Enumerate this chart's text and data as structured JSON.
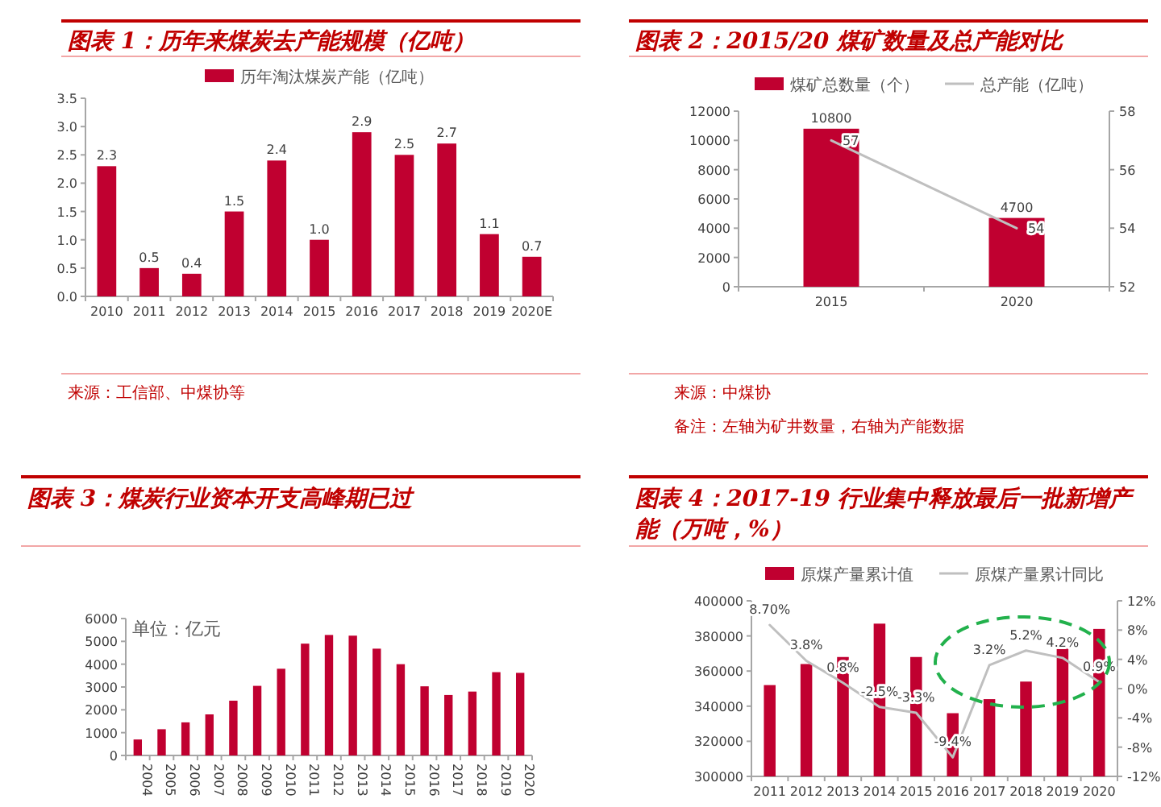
{
  "chart_data": [
    {
      "type": "bar",
      "title": "图表 1：历年来煤炭去产能规模（亿吨）",
      "categories": [
        "2010",
        "2011",
        "2012",
        "2013",
        "2014",
        "2015",
        "2016",
        "2017",
        "2018",
        "2019",
        "2020E"
      ],
      "series": [
        {
          "name": "历年淘汰煤炭产能（亿吨）",
          "color": "#c00030",
          "values": [
            2.3,
            0.5,
            0.4,
            1.5,
            2.4,
            1.0,
            2.9,
            2.5,
            2.7,
            1.1,
            0.7
          ],
          "value_labels": [
            "2.3",
            "0.5",
            "0.4",
            "1.5",
            "2.4",
            "1.0",
            "2.9",
            "2.5",
            "2.7",
            "1.1",
            "0.7"
          ]
        }
      ],
      "ylim": [
        0,
        3.5
      ],
      "yticks": [
        {
          "value": 0,
          "label": "0.0"
        },
        {
          "value": 0.5,
          "label": "0.5"
        },
        {
          "value": 1,
          "label": "1.0"
        },
        {
          "value": 1.5,
          "label": "1.5"
        },
        {
          "value": 2,
          "label": "2.0"
        },
        {
          "value": 2.5,
          "label": "2.5"
        },
        {
          "value": 3,
          "label": "3.0"
        },
        {
          "value": 3.5,
          "label": "3.5"
        }
      ],
      "legend": "top",
      "grid": false,
      "annotations": [
        "来源：工信部、中煤协等"
      ]
    },
    {
      "type": "bar",
      "title": "图表 2：2015/20 煤矿数量及总产能对比",
      "categories": [
        "2015",
        "2020"
      ],
      "series": [
        {
          "name": "煤矿总数量（个）",
          "color": "#c00030",
          "values": [
            10800,
            4700
          ]
        },
        {
          "name": "总产能（亿吨）",
          "type": "line",
          "axis": "y2",
          "color": "#bfbfbf",
          "values": [
            57,
            54
          ]
        }
      ],
      "ylim": [
        0,
        12000
      ],
      "yticks": [
        0,
        2000,
        4000,
        6000,
        8000,
        10000,
        12000
      ],
      "y2lim": [
        52,
        58
      ],
      "y2ticks": [
        52,
        54,
        56,
        58
      ],
      "data_labels": true,
      "legend": "top",
      "grid": false,
      "annotations": [
        "来源：中煤协",
        "备注：左轴为矿井数量，右轴为产能数据"
      ]
    },
    {
      "type": "bar",
      "title": "图表 3：煤炭行业资本开支高峰期已过",
      "categories": [
        "2004",
        "2005",
        "2006",
        "2007",
        "2008",
        "2009",
        "2010",
        "2011",
        "2012",
        "2013",
        "2014",
        "2015",
        "2016",
        "2017",
        "2018",
        "2019",
        "2020"
      ],
      "series": [
        {
          "color": "#c00030",
          "values": [
            700,
            1150,
            1450,
            1800,
            2400,
            3050,
            3800,
            4900,
            5280,
            5250,
            4680,
            4000,
            3030,
            2650,
            2800,
            3650,
            3620
          ]
        }
      ],
      "ylim": [
        0,
        6000
      ],
      "yticks": [
        0,
        1000,
        2000,
        3000,
        4000,
        5000,
        6000
      ],
      "grid": false,
      "annotations": [
        "单位：亿元"
      ]
    },
    {
      "type": "bar",
      "title": "图表 4：2017-19 行业集中释放最后一批新增产能（万吨，%）",
      "categories": [
        "2011",
        "2012",
        "2013",
        "2014",
        "2015",
        "2016",
        "2017",
        "2018",
        "2019",
        "2020"
      ],
      "series": [
        {
          "name": "原煤产量累计值",
          "color": "#c00030",
          "values": [
            352000,
            364000,
            368000,
            387000,
            368000,
            336000,
            344000,
            354000,
            374000,
            384000
          ]
        },
        {
          "name": "原煤产量累计同比",
          "type": "line",
          "axis": "y2",
          "color": "#bfbfbf",
          "values": [
            8.7,
            3.8,
            0.8,
            -2.5,
            -3.3,
            -9.4,
            3.2,
            5.2,
            4.2,
            0.9
          ],
          "value_labels": [
            "8.70%",
            "3.8%",
            "0.8%",
            "-2.5%",
            "-3.3%",
            "-9.4%",
            "3.2%",
            "5.2%",
            "4.2%",
            "0.9%"
          ]
        }
      ],
      "ylim": [
        300000,
        400000
      ],
      "yticks": [
        300000,
        320000,
        340000,
        360000,
        380000,
        400000
      ],
      "y2lim": [
        -12,
        12
      ],
      "y2ticks": [
        {
          "value": -12,
          "label": "-12%"
        },
        {
          "value": -8,
          "label": "-8%"
        },
        {
          "value": -4,
          "label": "-4%"
        },
        {
          "value": 0,
          "label": "0%"
        },
        {
          "value": 4,
          "label": "4%"
        },
        {
          "value": 8,
          "label": "8%"
        },
        {
          "value": 12,
          "label": "12%"
        }
      ],
      "legend": "top",
      "grid": false
    }
  ]
}
